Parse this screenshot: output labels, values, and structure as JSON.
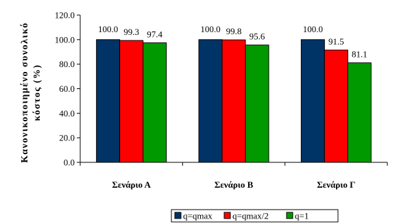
{
  "chart_data": {
    "type": "bar",
    "categories": [
      "Σενάριο Α",
      "Σενάριο Β",
      "Σενάριο Γ"
    ],
    "series": [
      {
        "name": "q=qmax",
        "color": "#003366",
        "values": [
          100.0,
          100.0,
          100.0
        ]
      },
      {
        "name": "q=qmax/2",
        "color": "#ff0000",
        "values": [
          99.3,
          99.8,
          91.5
        ]
      },
      {
        "name": "q=1",
        "color": "#009900",
        "values": [
          97.4,
          95.6,
          81.1
        ]
      }
    ],
    "ylabel_lines": [
      "Κανονικοποιημένο συνολικό",
      "κόστος (%)"
    ],
    "yticks": [
      "0.0",
      "20.0",
      "40.0",
      "60.0",
      "80.0",
      "100.0",
      "120.0"
    ],
    "ylim": [
      0,
      120
    ],
    "legend_position": "bottom"
  }
}
